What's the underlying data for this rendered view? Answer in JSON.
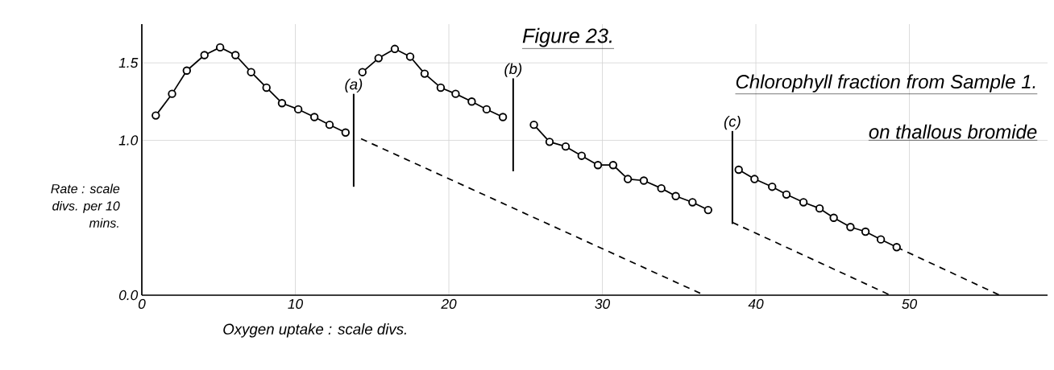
{
  "chart_data": {
    "type": "line",
    "title": "Figure 23.",
    "subtitle": "Chlorophyll fraction from Sample 1.",
    "annotations": [
      "on thallous bromide"
    ],
    "xlabel": "Oxygen uptake : scale divs.",
    "ylabel": "Rate : scale divs. per 10 mins.",
    "xlim": [
      0,
      59
    ],
    "ylim": [
      0,
      1.75
    ],
    "xticks": [
      0,
      10,
      20,
      30,
      40,
      50
    ],
    "yticks": [
      {
        "value": 0,
        "label": "0.0"
      },
      {
        "value": 1,
        "label": "1.0"
      },
      1.5
    ],
    "grid": true,
    "series": [
      {
        "color": "#000000",
        "marker": "circle",
        "line_style": "solid",
        "x": [
          0.91,
          1.97,
          2.93,
          4.08,
          5.1,
          6.1,
          7.12,
          8.12,
          9.13,
          10.19,
          11.24,
          12.23,
          13.27
        ],
        "values": [
          1.16,
          1.3,
          1.45,
          1.55,
          1.6,
          1.55,
          1.44,
          1.34,
          1.24,
          1.2,
          1.15,
          1.1,
          1.05
        ]
      },
      {
        "color": "#000000",
        "marker": "circle",
        "line_style": "solid",
        "x": [
          14.37,
          15.42,
          16.48,
          17.48,
          18.42,
          19.47,
          20.44,
          21.49,
          22.46,
          23.52
        ],
        "values": [
          1.44,
          1.53,
          1.59,
          1.54,
          1.43,
          1.34,
          1.3,
          1.25,
          1.2,
          1.15
        ]
      },
      {
        "color": "#000000",
        "marker": "circle",
        "line_style": "solid",
        "x": [
          25.54,
          26.56,
          27.61,
          28.65,
          29.71,
          30.7,
          31.66,
          32.7,
          33.84,
          34.78,
          35.87,
          36.89
        ],
        "values": [
          1.1,
          0.99,
          0.96,
          0.9,
          0.84,
          0.84,
          0.75,
          0.74,
          0.69,
          0.64,
          0.6,
          0.55
        ]
      },
      {
        "color": "#000000",
        "marker": "circle",
        "line_style": "solid",
        "x": [
          38.88,
          39.91,
          41.06,
          41.99,
          43.1,
          44.15,
          45.07,
          46.16,
          47.14,
          48.14,
          49.17
        ],
        "values": [
          0.81,
          0.75,
          0.7,
          0.65,
          0.6,
          0.56,
          0.5,
          0.44,
          0.41,
          0.36,
          0.31
        ]
      },
      {
        "color": "#000000",
        "marker": "none",
        "line_style": "dashed",
        "x": [
          14.28,
          36.65
        ],
        "values": [
          1.01,
          0
        ]
      },
      {
        "color": "#000000",
        "marker": "none",
        "line_style": "dashed",
        "x": [
          38.47,
          48.76
        ],
        "values": [
          0.47,
          0
        ]
      },
      {
        "color": "#000000",
        "marker": "none",
        "line_style": "dashed",
        "x": [
          49.17,
          55.88
        ],
        "values": [
          0.31,
          0
        ]
      }
    ],
    "ref_lines": [
      {
        "axis": "x",
        "value": 13.8,
        "label": "(a)"
      },
      {
        "axis": "x",
        "value": 24.19,
        "label": "(b)"
      },
      {
        "axis": "x",
        "value": 38.47,
        "label": "(c)"
      }
    ]
  }
}
